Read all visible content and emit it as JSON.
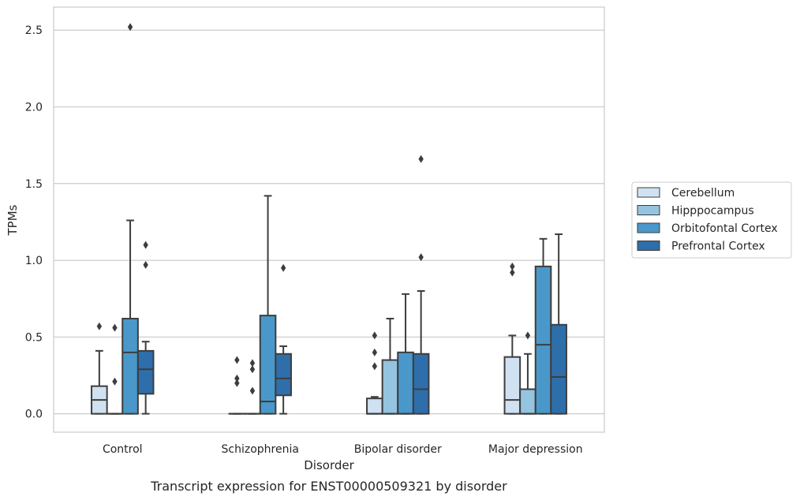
{
  "chart_data": {
    "type": "box",
    "caption": "Transcript expression for ENST00000509321 by disorder",
    "xlabel": "Disorder",
    "ylabel": "TPMs",
    "ylim": [
      -0.12,
      2.65
    ],
    "yticks": [
      0.0,
      0.5,
      1.0,
      1.5,
      2.0,
      2.5
    ],
    "ytick_labels": [
      "0.0",
      "0.5",
      "1.0",
      "1.5",
      "2.0",
      "2.5"
    ],
    "grid": "horizontal",
    "legend_position": "right",
    "categories": [
      "Control",
      "Schizophrenia",
      "Bipolar disorder",
      "Major depression"
    ],
    "series": [
      {
        "name": "Cerebellum",
        "color": "#d0e1f2",
        "boxes": [
          {
            "q1": 0.0,
            "median": 0.09,
            "q3": 0.18,
            "whisker_low": 0.0,
            "whisker_high": 0.41,
            "outliers": [
              0.57
            ]
          },
          {
            "q1": 0.0,
            "median": 0.0,
            "q3": 0.0,
            "whisker_low": 0.0,
            "whisker_high": 0.0,
            "outliers": [
              0.2,
              0.23,
              0.35
            ]
          },
          {
            "q1": 0.0,
            "median": 0.0,
            "q3": 0.1,
            "whisker_low": 0.0,
            "whisker_high": 0.11,
            "outliers": [
              0.31,
              0.4,
              0.51
            ]
          },
          {
            "q1": 0.0,
            "median": 0.09,
            "q3": 0.37,
            "whisker_low": 0.0,
            "whisker_high": 0.51,
            "outliers": [
              0.92,
              0.96
            ]
          }
        ]
      },
      {
        "name": "Hipppocampus",
        "color": "#94c4df",
        "boxes": [
          {
            "q1": 0.0,
            "median": 0.0,
            "q3": 0.0,
            "whisker_low": 0.0,
            "whisker_high": 0.0,
            "outliers": [
              0.21,
              0.56
            ]
          },
          {
            "q1": 0.0,
            "median": 0.0,
            "q3": 0.0,
            "whisker_low": 0.0,
            "whisker_high": 0.0,
            "outliers": [
              0.15,
              0.29,
              0.33
            ]
          },
          {
            "q1": 0.0,
            "median": 0.0,
            "q3": 0.35,
            "whisker_low": 0.0,
            "whisker_high": 0.62,
            "outliers": []
          },
          {
            "q1": 0.0,
            "median": 0.0,
            "q3": 0.16,
            "whisker_low": 0.0,
            "whisker_high": 0.39,
            "outliers": [
              0.51
            ]
          }
        ]
      },
      {
        "name": "Orbitofontal Cortex",
        "color": "#4a98c9",
        "boxes": [
          {
            "q1": 0.0,
            "median": 0.4,
            "q3": 0.62,
            "whisker_low": 0.0,
            "whisker_high": 1.26,
            "outliers": [
              2.52
            ]
          },
          {
            "q1": 0.0,
            "median": 0.08,
            "q3": 0.64,
            "whisker_low": 0.0,
            "whisker_high": 1.42,
            "outliers": []
          },
          {
            "q1": 0.0,
            "median": 0.0,
            "q3": 0.4,
            "whisker_low": 0.0,
            "whisker_high": 0.78,
            "outliers": []
          },
          {
            "q1": 0.0,
            "median": 0.45,
            "q3": 0.96,
            "whisker_low": 0.0,
            "whisker_high": 1.14,
            "outliers": []
          }
        ]
      },
      {
        "name": "Prefrontal Cortex",
        "color": "#2e6fab",
        "boxes": [
          {
            "q1": 0.13,
            "median": 0.29,
            "q3": 0.41,
            "whisker_low": 0.0,
            "whisker_high": 0.47,
            "outliers": [
              0.97,
              1.1
            ]
          },
          {
            "q1": 0.12,
            "median": 0.23,
            "q3": 0.39,
            "whisker_low": 0.0,
            "whisker_high": 0.44,
            "outliers": [
              0.95
            ]
          },
          {
            "q1": 0.0,
            "median": 0.16,
            "q3": 0.39,
            "whisker_low": 0.0,
            "whisker_high": 0.8,
            "outliers": [
              1.02,
              1.66
            ]
          },
          {
            "q1": 0.0,
            "median": 0.24,
            "q3": 0.58,
            "whisker_low": 0.0,
            "whisker_high": 1.17,
            "outliers": []
          }
        ]
      }
    ]
  }
}
